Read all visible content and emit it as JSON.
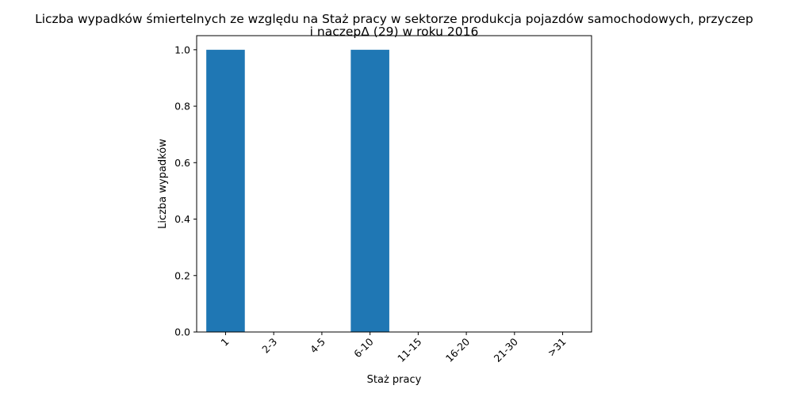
{
  "chart_data": {
    "type": "bar",
    "title_lines": [
      "Liczba wypadków śmiertelnych ze względu na Staż pracy w sektorze produkcja pojazdów samochodowych, przyczep",
      "i naczepΔ (29) w roku 2016"
    ],
    "xlabel": "Staż pracy",
    "ylabel": "Liczba wypadków",
    "categories": [
      "1",
      "2-3",
      "4-5",
      "6-10",
      "11-15",
      "16-20",
      "21-30",
      ">31"
    ],
    "values": [
      1,
      0,
      0,
      1,
      0,
      0,
      0,
      0
    ],
    "ylim": [
      0,
      1.05
    ],
    "yticks": [
      "0.0",
      "0.2",
      "0.4",
      "0.6",
      "0.8",
      "1.0"
    ],
    "bar_color": "#1f77b4",
    "grid": false,
    "legend": "none"
  }
}
